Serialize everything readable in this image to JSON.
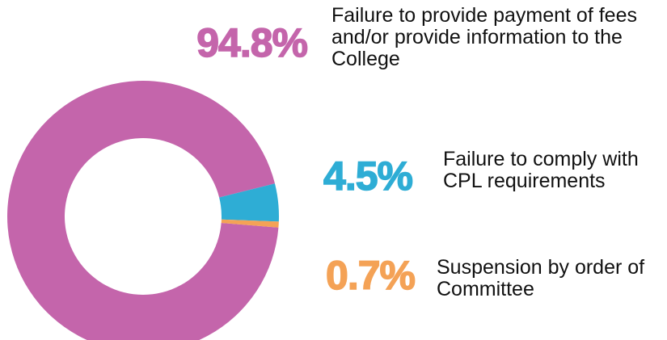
{
  "chart_data": {
    "type": "pie",
    "categories": [
      "Failure to provide payment of fees and/or provide information to the College",
      "Failure to comply with CPL requirements",
      "Suspension by order of Committee"
    ],
    "values": [
      94.8,
      4.5,
      0.7
    ],
    "value_labels": [
      "94.8%",
      "4.5%",
      "0.7%"
    ],
    "colors": [
      "#c465ab",
      "#2eadd5",
      "#f4a256"
    ]
  }
}
